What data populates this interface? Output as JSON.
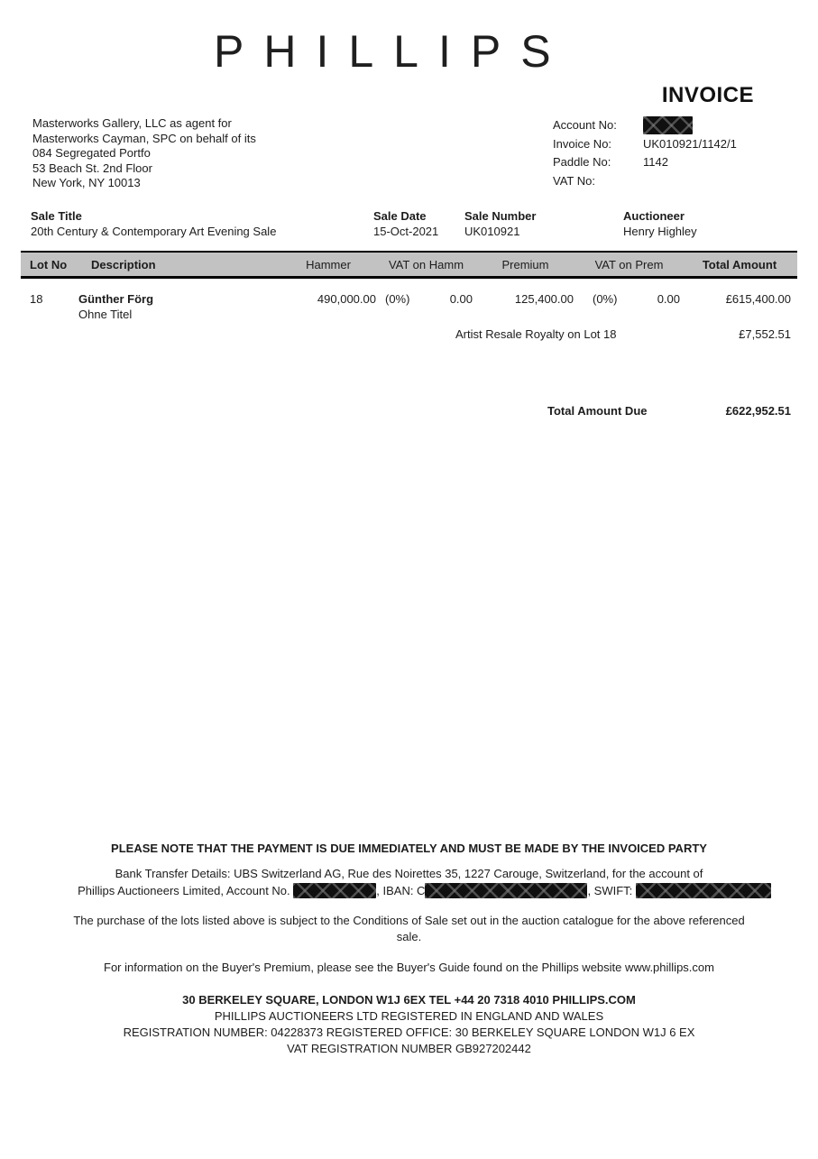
{
  "brand": {
    "logo": "PHILLIPS",
    "doc_type": "INVOICE"
  },
  "buyer": {
    "line1": "Masterworks Gallery, LLC as agent for",
    "line2": "Masterworks Cayman, SPC on behalf of its",
    "line3": "084 Segregated Portfo",
    "line4": "53 Beach St. 2nd Floor",
    "line5": "New York, NY 10013"
  },
  "account_info": {
    "account_no_label": "Account No:",
    "invoice_no_label": "Invoice No:",
    "invoice_no": "UK010921/1142/1",
    "paddle_no_label": "Paddle No:",
    "paddle_no": "1142",
    "vat_no_label": "VAT No:",
    "vat_no": ""
  },
  "sale_info": {
    "sale_title_label": "Sale Title",
    "sale_title": "20th Century & Contemporary Art Evening Sale",
    "sale_date_label": "Sale Date",
    "sale_date": "15-Oct-2021",
    "sale_number_label": "Sale Number",
    "sale_number": "UK010921",
    "auctioneer_label": "Auctioneer",
    "auctioneer": "Henry Highley"
  },
  "lot_table": {
    "headers": {
      "lot_no": "Lot No",
      "description": "Description",
      "hammer": "Hammer",
      "vat_on_hamm": "VAT on Hamm",
      "premium": "Premium",
      "vat_on_prem": "VAT on Prem",
      "total_amount": "Total Amount"
    },
    "rows": [
      {
        "lot_no": "18",
        "artist": "Günther Förg",
        "title": "Ohne Titel",
        "hammer": "490,000.00",
        "vat_on_hamm_pct": "(0%)",
        "vat_on_hamm": "0.00",
        "premium": "125,400.00",
        "vat_on_prem_pct": "(0%)",
        "vat_on_prem": "0.00",
        "total_amount": "£615,400.00"
      }
    ],
    "royalty": {
      "label": "Artist Resale Royalty on Lot 18",
      "amount": "£7,552.51"
    },
    "total_due": {
      "label": "Total Amount Due",
      "amount": "£622,952.51"
    }
  },
  "notices": {
    "payment_notice": "PLEASE NOTE THAT THE PAYMENT IS DUE IMMEDIATELY AND MUST BE MADE BY THE INVOICED PARTY",
    "bank_line1": "Bank Transfer Details: UBS Switzerland AG, Rue des Noirettes 35, 1227 Carouge, Switzerland, for the account of",
    "bank_line2_p1": "Phillips Auctioneers Limited, Account No. ",
    "bank_line2_p2": ", IBAN: C",
    "bank_line2_p3": ", SWIFT: ",
    "conditions": "The purchase of the lots listed above is subject to the Conditions of Sale set out in the auction catalogue for the above referenced sale.",
    "buyers_premium": "For information on the Buyer's Premium, please see the Buyer's Guide found on the Phillips website www.phillips.com"
  },
  "footer": {
    "line1": "30 BERKELEY SQUARE, LONDON W1J 6EX TEL +44 20 7318 4010 PHILLIPS.COM",
    "line2": "PHILLIPS AUCTIONEERS LTD REGISTERED IN ENGLAND AND WALES",
    "line3": "REGISTRATION NUMBER: 04228373 REGISTERED OFFICE: 30 BERKELEY SQUARE LONDON W1J 6 EX",
    "line4": "VAT REGISTRATION NUMBER GB927202442"
  },
  "colors": {
    "table_header_bar": "#c2c2c2",
    "redaction_fill": "#101010",
    "text": "#1c1c1c"
  }
}
